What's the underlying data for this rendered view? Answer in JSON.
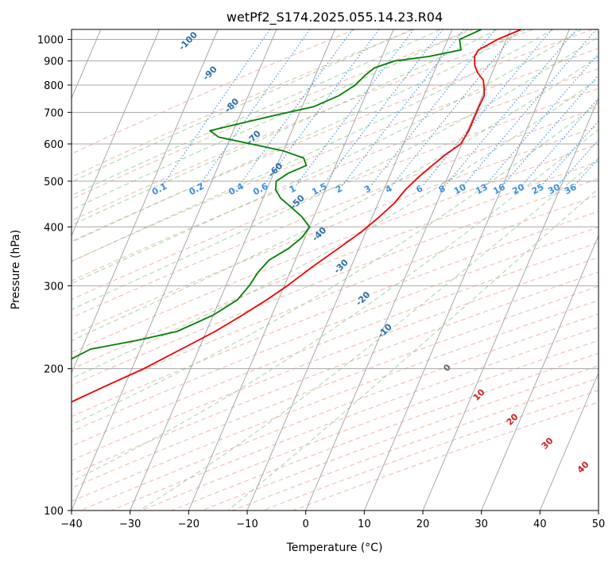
{
  "chart_data": {
    "type": "line",
    "title": "wetPf2_S174.2025.055.14.23.R04",
    "xlabel": "Temperature (°C)",
    "ylabel": "Pressure (hPa)",
    "xlim": [
      -40,
      50
    ],
    "ylim": [
      1050,
      100
    ],
    "y_scale": "log",
    "grid": true,
    "skew": 35,
    "x_ticks": [
      -40,
      -30,
      -20,
      -10,
      0,
      10,
      20,
      30,
      40,
      50
    ],
    "y_ticks": [
      100,
      200,
      300,
      400,
      500,
      600,
      700,
      800,
      900,
      1000
    ],
    "series": [
      {
        "role": "temperature",
        "color": "#ee0000",
        "points": [
          [
            1050,
            1.8
          ],
          [
            1000,
            -1.5
          ],
          [
            950,
            -4.0
          ],
          [
            920,
            -4.2
          ],
          [
            880,
            -3.5
          ],
          [
            850,
            -2.5
          ],
          [
            820,
            -1.0
          ],
          [
            790,
            -0.3
          ],
          [
            760,
            0.3
          ],
          [
            720,
            0.2
          ],
          [
            680,
            0.2
          ],
          [
            640,
            0.2
          ],
          [
            600,
            -0.2
          ],
          [
            570,
            -2.0
          ],
          [
            540,
            -3.5
          ],
          [
            510,
            -5.0
          ],
          [
            480,
            -6.3
          ],
          [
            450,
            -7.2
          ],
          [
            420,
            -8.8
          ],
          [
            390,
            -10.8
          ],
          [
            360,
            -13.5
          ],
          [
            330,
            -16.5
          ],
          [
            300,
            -19.5
          ],
          [
            280,
            -22.0
          ],
          [
            260,
            -25.0
          ],
          [
            240,
            -28.5
          ],
          [
            220,
            -33.0
          ],
          [
            200,
            -38.0
          ],
          [
            180,
            -44.5
          ],
          [
            160,
            -51.5
          ],
          [
            140,
            -57.5
          ],
          [
            120,
            -64.0
          ],
          [
            110,
            -67.0
          ],
          [
            100,
            -69.0
          ]
        ]
      },
      {
        "role": "dewpoint",
        "color": "#008000",
        "points": [
          [
            1050,
            -5.0
          ],
          [
            1000,
            -8.0
          ],
          [
            950,
            -7.0
          ],
          [
            920,
            -12.0
          ],
          [
            900,
            -17.5
          ],
          [
            870,
            -20.5
          ],
          [
            840,
            -21.5
          ],
          [
            800,
            -22.5
          ],
          [
            760,
            -24.5
          ],
          [
            720,
            -28.0
          ],
          [
            690,
            -34.0
          ],
          [
            660,
            -40.0
          ],
          [
            640,
            -44.0
          ],
          [
            620,
            -42.0
          ],
          [
            600,
            -36.0
          ],
          [
            580,
            -30.0
          ],
          [
            560,
            -26.0
          ],
          [
            540,
            -25.0
          ],
          [
            520,
            -27.5
          ],
          [
            500,
            -29.0
          ],
          [
            480,
            -28.5
          ],
          [
            460,
            -27.0
          ],
          [
            440,
            -24.5
          ],
          [
            420,
            -22.0
          ],
          [
            400,
            -20.0
          ],
          [
            380,
            -20.5
          ],
          [
            360,
            -22.0
          ],
          [
            340,
            -24.5
          ],
          [
            320,
            -25.5
          ],
          [
            300,
            -26.0
          ],
          [
            280,
            -27.0
          ],
          [
            260,
            -30.0
          ],
          [
            240,
            -35.0
          ],
          [
            230,
            -41.0
          ],
          [
            220,
            -48.5
          ],
          [
            210,
            -51.0
          ],
          [
            195,
            -53.5
          ],
          [
            180,
            -58.0
          ],
          [
            165,
            -62.5
          ],
          [
            150,
            -68.5
          ],
          [
            140,
            -72.0
          ],
          [
            130,
            -74.5
          ],
          [
            120,
            -75.0
          ],
          [
            110,
            -76.5
          ],
          [
            100,
            -78.0
          ]
        ]
      }
    ],
    "dry_adiabat_labels": [
      "-100",
      "-90",
      "-80",
      "-70",
      "-60",
      "-50",
      "-40",
      "-30",
      "-20",
      "-10"
    ],
    "mixing_ratio_labels": [
      "0.1",
      "0.2",
      "0.4",
      "0.6",
      "1",
      "1.5",
      "2",
      "3",
      "4",
      "6",
      "8",
      "10",
      "13",
      "16",
      "20",
      "25",
      "30",
      "36"
    ],
    "moist_adiabat_labels": [
      "0",
      "10",
      "20",
      "30",
      "40"
    ],
    "colors": {
      "dry_adiabat": "#e8a090",
      "dry_adiabat_label": "#2a6fa8",
      "moist_adiabat": "#90c890",
      "moist_adiabat_label": "#cc2222",
      "mixing_ratio": "#3a8fe0",
      "isotherm": "#a8a8a8",
      "isobar": "#a8a8a8"
    }
  }
}
